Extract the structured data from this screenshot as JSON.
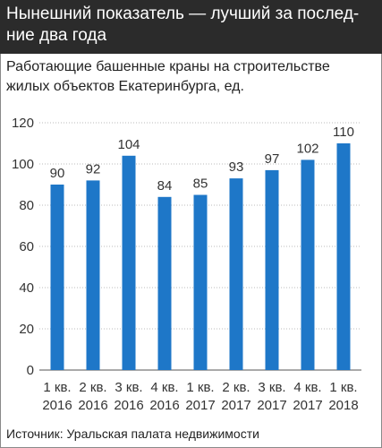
{
  "title": "Нынешний показатель — лучший за послед-\nние два года",
  "subtitle": "Работающие башенные краны на строительстве жилых объектов Екатеринбурга, ед.",
  "source": "Источник: Уральская палата недвижимости",
  "colors": {
    "bar": "#1e77c8",
    "header_bg": "#2b2b2b",
    "grid": "#bbbbbb",
    "axis": "#555555"
  },
  "chart_data": {
    "type": "bar",
    "categories": [
      [
        "1 кв.",
        "2016"
      ],
      [
        "2 кв.",
        "2016"
      ],
      [
        "3 кв.",
        "2016"
      ],
      [
        "4 кв.",
        "2016"
      ],
      [
        "1 кв.",
        "2017"
      ],
      [
        "2 кв.",
        "2017"
      ],
      [
        "3 кв.",
        "2017"
      ],
      [
        "4 кв.",
        "2017"
      ],
      [
        "1 кв.",
        "2018"
      ]
    ],
    "values": [
      90,
      92,
      104,
      84,
      85,
      93,
      97,
      102,
      110
    ],
    "ylim": [
      0,
      120
    ],
    "yticks": [
      0,
      20,
      40,
      60,
      80,
      100,
      120
    ],
    "grid": true
  }
}
